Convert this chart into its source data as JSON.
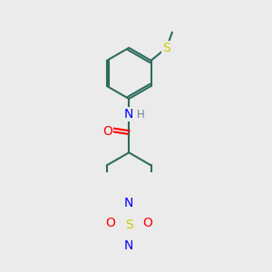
{
  "bg_color": "#ebebeb",
  "bond_color": "#2d6b5e",
  "bond_width": 1.5,
  "atom_colors": {
    "O": "#ff0000",
    "N": "#0000ff",
    "S": "#cccc00",
    "H": "#708090",
    "C": "#2d6b5e"
  },
  "font_size": 9
}
